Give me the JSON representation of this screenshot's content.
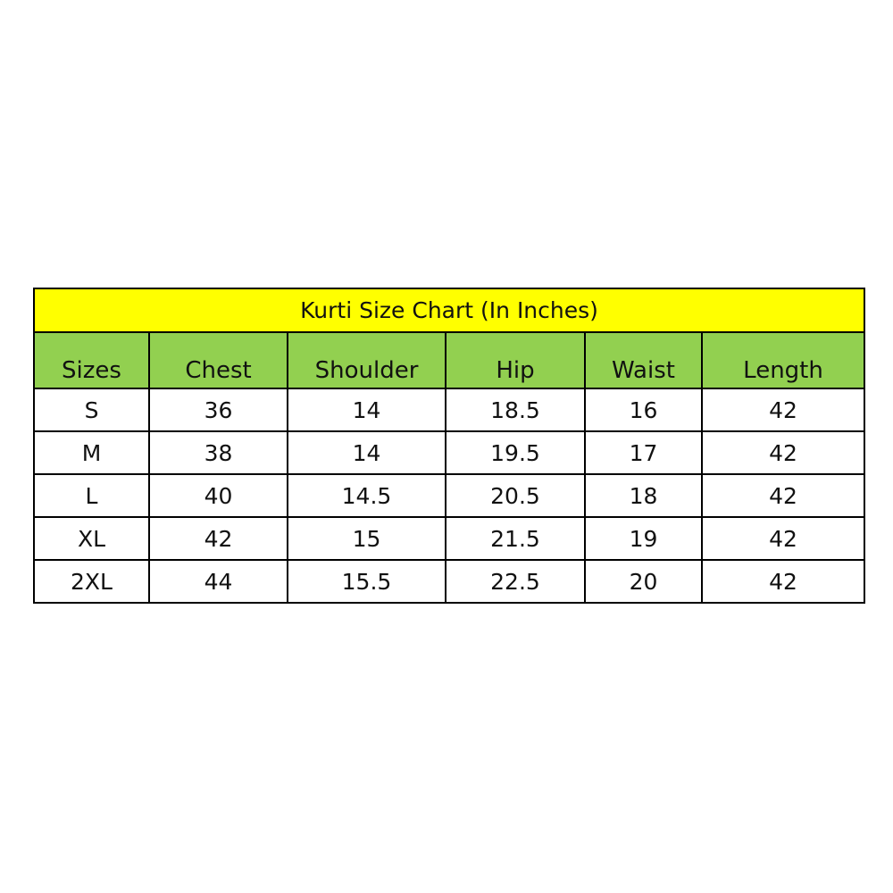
{
  "title": "Kurti Size Chart (In Inches)",
  "colors": {
    "title_bg": "#ffff00",
    "header_bg": "#92d050"
  },
  "columns": [
    "Sizes",
    "Chest",
    "Shoulder",
    "Hip",
    "Waist",
    "Length"
  ],
  "rows": [
    [
      "S",
      "36",
      "14",
      "18.5",
      "16",
      "42"
    ],
    [
      "M",
      "38",
      "14",
      "19.5",
      "17",
      "42"
    ],
    [
      "L",
      "40",
      "14.5",
      "20.5",
      "18",
      "42"
    ],
    [
      "XL",
      "42",
      "15",
      "21.5",
      "19",
      "42"
    ],
    [
      "2XL",
      "44",
      "15.5",
      "22.5",
      "20",
      "42"
    ]
  ]
}
